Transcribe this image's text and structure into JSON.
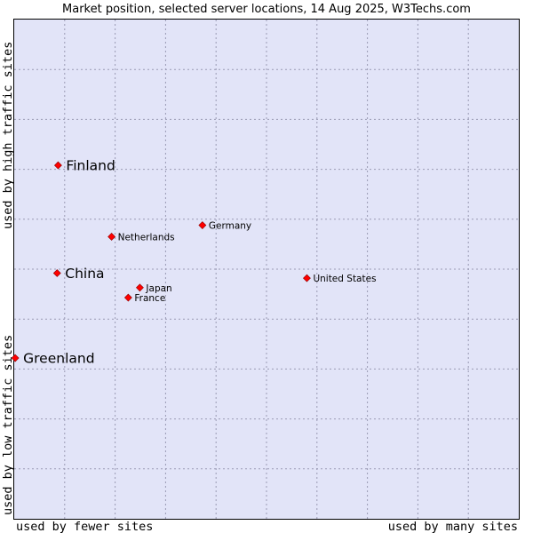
{
  "chart_data": {
    "type": "scatter",
    "title": "Market position, selected server locations, 14 Aug 2025, W3Techs.com",
    "xlabel_left": "used by fewer sites",
    "xlabel_right": "used by many sites",
    "ylabel_top": "used by high traffic sites",
    "ylabel_bottom": "used by low traffic sites",
    "xlim": [
      0,
      100
    ],
    "ylim": [
      0,
      100
    ],
    "grid": true,
    "point_color": "#ff0000",
    "plot_background": "#e2e4f8",
    "points": [
      {
        "label": "Finland",
        "x": 8.7,
        "y": 70.8,
        "emphasis": true
      },
      {
        "label": "China",
        "x": 8.5,
        "y": 49.2,
        "emphasis": true
      },
      {
        "label": "Greenland",
        "x": 0.2,
        "y": 32.2,
        "emphasis": true
      },
      {
        "label": "Netherlands",
        "x": 19.3,
        "y": 56.5,
        "emphasis": false
      },
      {
        "label": "Germany",
        "x": 37.3,
        "y": 58.8,
        "emphasis": false
      },
      {
        "label": "Japan",
        "x": 24.9,
        "y": 46.3,
        "emphasis": false
      },
      {
        "label": "France",
        "x": 22.6,
        "y": 44.3,
        "emphasis": false
      },
      {
        "label": "United States",
        "x": 58.0,
        "y": 48.2,
        "emphasis": false
      }
    ]
  }
}
